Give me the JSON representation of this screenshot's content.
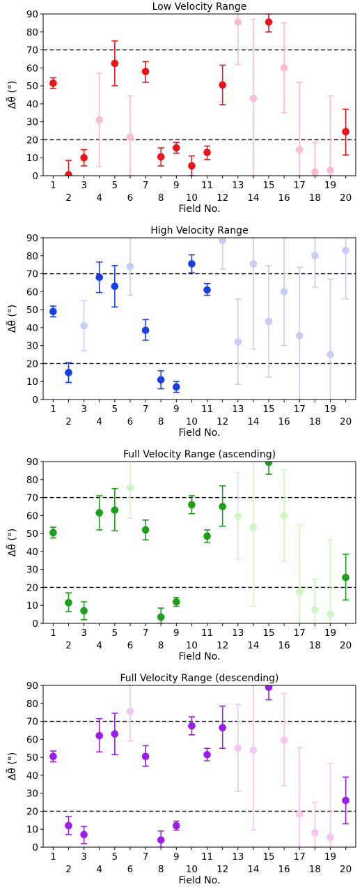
{
  "chart_data": [
    {
      "type": "scatter",
      "title": "Low Velocity Range",
      "xlabel": "Field No.",
      "ylabel": "Δθ̃ (°)",
      "ylim": [
        0,
        90
      ],
      "yticks": [
        0,
        10,
        20,
        30,
        40,
        50,
        60,
        70,
        80,
        90
      ],
      "xticks": [
        1,
        2,
        3,
        4,
        5,
        6,
        7,
        8,
        9,
        10,
        11,
        12,
        13,
        14,
        15,
        16,
        17,
        18,
        19,
        20
      ],
      "reference_lines": [
        20,
        70
      ],
      "colors": {
        "strong": "#e8161b",
        "faint": "#f9bcd9"
      },
      "points": [
        {
          "x": 1,
          "y": 51.5,
          "lo": 48.5,
          "hi": 54.5,
          "faint": false
        },
        {
          "x": 2,
          "y": 0.5,
          "lo": 0,
          "hi": 8.5,
          "faint": false
        },
        {
          "x": 3,
          "y": 10,
          "lo": 5.5,
          "hi": 14.5,
          "faint": false
        },
        {
          "x": 4,
          "y": 31,
          "lo": 5,
          "hi": 57,
          "faint": true
        },
        {
          "x": 5,
          "y": 62.5,
          "lo": 50,
          "hi": 75,
          "faint": false
        },
        {
          "x": 6,
          "y": 21.5,
          "lo": 0,
          "hi": 44.5,
          "faint": true
        },
        {
          "x": 7,
          "y": 58,
          "lo": 52,
          "hi": 63.5,
          "faint": false
        },
        {
          "x": 8,
          "y": 10.5,
          "lo": 5.5,
          "hi": 15.5,
          "faint": false
        },
        {
          "x": 9,
          "y": 15.5,
          "lo": 12.5,
          "hi": 18.5,
          "faint": false
        },
        {
          "x": 10,
          "y": 5.5,
          "lo": 0,
          "hi": 11,
          "faint": false
        },
        {
          "x": 11,
          "y": 13,
          "lo": 9,
          "hi": 16.5,
          "faint": false
        },
        {
          "x": 12,
          "y": 50.5,
          "lo": 39.5,
          "hi": 61.5,
          "faint": false
        },
        {
          "x": 13,
          "y": 85.5,
          "lo": 62,
          "hi": 90,
          "faint": true
        },
        {
          "x": 14,
          "y": 43,
          "lo": 0,
          "hi": 87,
          "faint": true
        },
        {
          "x": 15,
          "y": 85.5,
          "lo": 80,
          "hi": 90,
          "faint": false
        },
        {
          "x": 16,
          "y": 60,
          "lo": 35,
          "hi": 85,
          "faint": true
        },
        {
          "x": 17,
          "y": 14.5,
          "lo": 0,
          "hi": 52,
          "faint": true
        },
        {
          "x": 18,
          "y": 2,
          "lo": 0,
          "hi": 18.5,
          "faint": true
        },
        {
          "x": 19,
          "y": 3,
          "lo": 0,
          "hi": 44.5,
          "faint": true
        },
        {
          "x": 20,
          "y": 24.5,
          "lo": 11.5,
          "hi": 37,
          "faint": false
        }
      ]
    },
    {
      "type": "scatter",
      "title": "High Velocity Range",
      "xlabel": "Field No.",
      "ylabel": "Δθ̃ (°)",
      "ylim": [
        0,
        90
      ],
      "yticks": [
        0,
        10,
        20,
        30,
        40,
        50,
        60,
        70,
        80,
        90
      ],
      "xticks": [
        1,
        2,
        3,
        4,
        5,
        6,
        7,
        8,
        9,
        10,
        11,
        12,
        13,
        14,
        15,
        16,
        17,
        18,
        19,
        20
      ],
      "reference_lines": [
        20,
        70
      ],
      "colors": {
        "strong": "#1a3fe0",
        "faint": "#c9ccf4"
      },
      "points": [
        {
          "x": 1,
          "y": 49,
          "lo": 46,
          "hi": 52,
          "faint": false
        },
        {
          "x": 2,
          "y": 15,
          "lo": 9.5,
          "hi": 20.5,
          "faint": false
        },
        {
          "x": 3,
          "y": 41,
          "lo": 27,
          "hi": 55,
          "faint": true
        },
        {
          "x": 4,
          "y": 68,
          "lo": 59.5,
          "hi": 76.5,
          "faint": false
        },
        {
          "x": 5,
          "y": 63,
          "lo": 51.5,
          "hi": 74.5,
          "faint": false
        },
        {
          "x": 6,
          "y": 74,
          "lo": 58,
          "hi": 90,
          "faint": true
        },
        {
          "x": 7,
          "y": 38.5,
          "lo": 33,
          "hi": 44.5,
          "faint": false
        },
        {
          "x": 8,
          "y": 11,
          "lo": 6,
          "hi": 16,
          "faint": false
        },
        {
          "x": 9,
          "y": 7,
          "lo": 4,
          "hi": 10,
          "faint": false
        },
        {
          "x": 10,
          "y": 75.5,
          "lo": 70.5,
          "hi": 80.5,
          "faint": false
        },
        {
          "x": 11,
          "y": 61,
          "lo": 58,
          "hi": 64.5,
          "faint": false
        },
        {
          "x": 12,
          "y": 88.5,
          "lo": 72.5,
          "hi": 90,
          "faint": true
        },
        {
          "x": 13,
          "y": 32,
          "lo": 8.5,
          "hi": 56,
          "faint": true
        },
        {
          "x": 14,
          "y": 75.5,
          "lo": 28,
          "hi": 90,
          "faint": true
        },
        {
          "x": 15,
          "y": 43.5,
          "lo": 12.5,
          "hi": 74.5,
          "faint": true
        },
        {
          "x": 16,
          "y": 60,
          "lo": 30,
          "hi": 90,
          "faint": true
        },
        {
          "x": 17,
          "y": 35.5,
          "lo": 0,
          "hi": 73.5,
          "faint": true
        },
        {
          "x": 18,
          "y": 80,
          "lo": 62.5,
          "hi": 90,
          "faint": true
        },
        {
          "x": 19,
          "y": 25,
          "lo": 0,
          "hi": 67,
          "faint": true
        },
        {
          "x": 20,
          "y": 83,
          "lo": 56,
          "hi": 90,
          "faint": true
        }
      ]
    },
    {
      "type": "scatter",
      "title": "Full Velocity Range (ascending)",
      "xlabel": "Field No.",
      "ylabel": "Δθ̃ (°)",
      "ylim": [
        0,
        90
      ],
      "yticks": [
        0,
        10,
        20,
        30,
        40,
        50,
        60,
        70,
        80,
        90
      ],
      "xticks": [
        1,
        2,
        3,
        4,
        5,
        6,
        7,
        8,
        9,
        10,
        11,
        12,
        13,
        14,
        15,
        16,
        17,
        18,
        19,
        20
      ],
      "reference_lines": [
        20,
        70
      ],
      "colors": {
        "strong": "#1f9e1a",
        "faint": "#cef5c4"
      },
      "points": [
        {
          "x": 1,
          "y": 50.5,
          "lo": 47.5,
          "hi": 53.5,
          "faint": false
        },
        {
          "x": 2,
          "y": 11.5,
          "lo": 6.5,
          "hi": 17,
          "faint": false
        },
        {
          "x": 3,
          "y": 7,
          "lo": 2,
          "hi": 12,
          "faint": false
        },
        {
          "x": 4,
          "y": 61.5,
          "lo": 52,
          "hi": 71,
          "faint": false
        },
        {
          "x": 5,
          "y": 63,
          "lo": 51.5,
          "hi": 75,
          "faint": false
        },
        {
          "x": 6,
          "y": 75.5,
          "lo": 58.5,
          "hi": 90,
          "faint": true
        },
        {
          "x": 7,
          "y": 52,
          "lo": 46.5,
          "hi": 57.5,
          "faint": false
        },
        {
          "x": 8,
          "y": 3.5,
          "lo": 0,
          "hi": 8.5,
          "faint": false
        },
        {
          "x": 9,
          "y": 12,
          "lo": 9.5,
          "hi": 14.5,
          "faint": false
        },
        {
          "x": 10,
          "y": 66,
          "lo": 61,
          "hi": 71,
          "faint": false
        },
        {
          "x": 11,
          "y": 48.5,
          "lo": 45,
          "hi": 52,
          "faint": false
        },
        {
          "x": 12,
          "y": 65,
          "lo": 54,
          "hi": 76.5,
          "faint": false
        },
        {
          "x": 13,
          "y": 59.5,
          "lo": 35.5,
          "hi": 84,
          "faint": true
        },
        {
          "x": 14,
          "y": 53.5,
          "lo": 9.5,
          "hi": 90,
          "faint": true
        },
        {
          "x": 15,
          "y": 89.5,
          "lo": 83,
          "hi": 90,
          "faint": false
        },
        {
          "x": 16,
          "y": 60,
          "lo": 34.5,
          "hi": 85.5,
          "faint": true
        },
        {
          "x": 17,
          "y": 17.5,
          "lo": 0,
          "hi": 55,
          "faint": true
        },
        {
          "x": 18,
          "y": 7.5,
          "lo": 0,
          "hi": 24.5,
          "faint": true
        },
        {
          "x": 19,
          "y": 5,
          "lo": 0,
          "hi": 46.5,
          "faint": true
        },
        {
          "x": 20,
          "y": 25.5,
          "lo": 13,
          "hi": 38.5,
          "faint": false
        }
      ]
    },
    {
      "type": "scatter",
      "title": "Full Velocity Range (descending)",
      "xlabel": "Field No.",
      "ylabel": "Δθ̃ (°)",
      "ylim": [
        0,
        90
      ],
      "yticks": [
        0,
        10,
        20,
        30,
        40,
        50,
        60,
        70,
        80,
        90
      ],
      "xticks": [
        1,
        2,
        3,
        4,
        5,
        6,
        7,
        8,
        9,
        10,
        11,
        12,
        13,
        14,
        15,
        16,
        17,
        18,
        19,
        20
      ],
      "reference_lines": [
        20,
        70
      ],
      "colors": {
        "strong": "#9a1ee8",
        "faint": "#f6c6f0"
      },
      "points": [
        {
          "x": 1,
          "y": 50.5,
          "lo": 47.5,
          "hi": 53.5,
          "faint": false
        },
        {
          "x": 2,
          "y": 12,
          "lo": 7,
          "hi": 17,
          "faint": false
        },
        {
          "x": 3,
          "y": 7,
          "lo": 2,
          "hi": 11.5,
          "faint": false
        },
        {
          "x": 4,
          "y": 62,
          "lo": 53,
          "hi": 71.5,
          "faint": false
        },
        {
          "x": 5,
          "y": 63,
          "lo": 51.5,
          "hi": 74.5,
          "faint": false
        },
        {
          "x": 6,
          "y": 75.5,
          "lo": 59,
          "hi": 90,
          "faint": true
        },
        {
          "x": 7,
          "y": 50.5,
          "lo": 45,
          "hi": 56.5,
          "faint": false
        },
        {
          "x": 8,
          "y": 4,
          "lo": 0,
          "hi": 9,
          "faint": false
        },
        {
          "x": 9,
          "y": 12,
          "lo": 9.5,
          "hi": 14.5,
          "faint": false
        },
        {
          "x": 10,
          "y": 67.5,
          "lo": 62.5,
          "hi": 72.5,
          "faint": false
        },
        {
          "x": 11,
          "y": 51.5,
          "lo": 48,
          "hi": 55,
          "faint": false
        },
        {
          "x": 12,
          "y": 66.5,
          "lo": 55,
          "hi": 78.5,
          "faint": false
        },
        {
          "x": 13,
          "y": 55,
          "lo": 31,
          "hi": 79.5,
          "faint": true
        },
        {
          "x": 14,
          "y": 54,
          "lo": 9.5,
          "hi": 90,
          "faint": true
        },
        {
          "x": 15,
          "y": 89,
          "lo": 82,
          "hi": 90,
          "faint": false
        },
        {
          "x": 16,
          "y": 59.5,
          "lo": 34,
          "hi": 85.5,
          "faint": true
        },
        {
          "x": 17,
          "y": 18.5,
          "lo": 0,
          "hi": 55.5,
          "faint": true
        },
        {
          "x": 18,
          "y": 8,
          "lo": 0,
          "hi": 25,
          "faint": true
        },
        {
          "x": 19,
          "y": 5.5,
          "lo": 0,
          "hi": 46.5,
          "faint": true
        },
        {
          "x": 20,
          "y": 26,
          "lo": 13,
          "hi": 39,
          "faint": false
        }
      ]
    }
  ]
}
